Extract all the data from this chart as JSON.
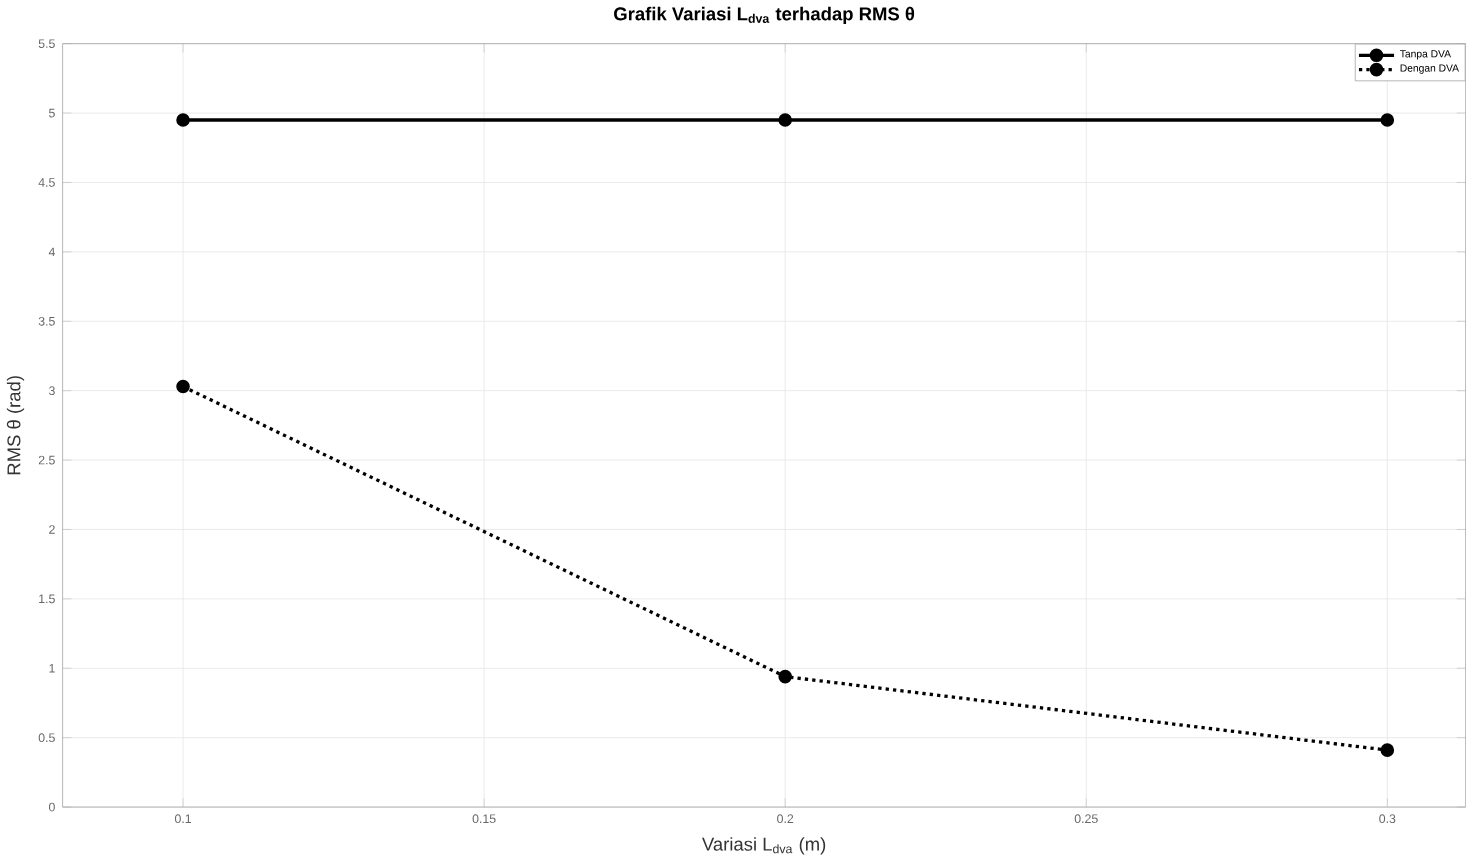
{
  "chart_data": {
    "type": "line",
    "title": "Grafik Variasi L$_{dva}$ terhadap RMS θ",
    "xlabel": "Variasi L$_{dva}$ (m)",
    "ylabel": "RMS θ (rad)",
    "x": [
      0.1,
      0.2,
      0.3
    ],
    "series": [
      {
        "name": "Tanpa DVA",
        "color": "#000000",
        "values": [
          4.95,
          4.95,
          4.95
        ],
        "line_style": "solid"
      },
      {
        "name": "Dengan DVA",
        "color": "#000000",
        "values": [
          3.03,
          0.94,
          0.41
        ],
        "line_style": "dotted"
      }
    ],
    "xlim": [
      0.08,
      0.313
    ],
    "ylim": [
      0,
      5.5
    ],
    "xticks": [
      0.1,
      0.15,
      0.2,
      0.25,
      0.3
    ],
    "yticks": [
      0,
      0.5,
      1,
      1.5,
      2,
      2.5,
      3,
      3.5,
      4,
      4.5,
      5,
      5.5
    ],
    "grid": true,
    "legend": "top right",
    "marker": "circle"
  }
}
